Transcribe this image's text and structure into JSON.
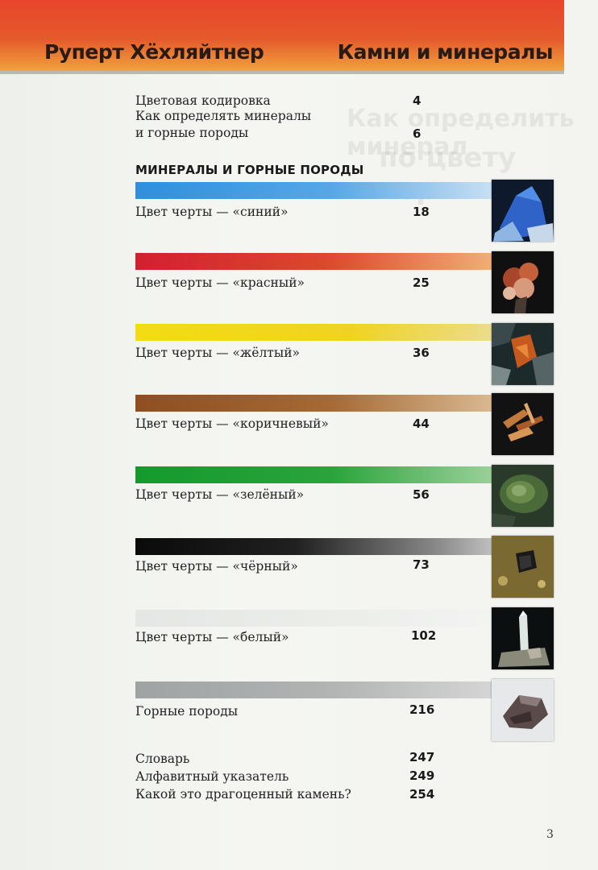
{
  "header": {
    "author": "Руперт Хёхляйтнер",
    "title": "Камни и минералы"
  },
  "intro": [
    {
      "label": "Цветовая кодировка",
      "page": "4"
    },
    {
      "label": "Как определять минералы",
      "page": ""
    },
    {
      "label": "и горные породы",
      "page": "6"
    }
  ],
  "section_heading": "МИНЕРАЛЫ И ГОРНЫЕ ПОРОДЫ",
  "streak_sections": [
    {
      "label": "Цвет черты — «синий»",
      "page": "18",
      "color": "#2f8fdc"
    },
    {
      "label": "Цвет черты — «красный»",
      "page": "25",
      "color": "#d8272f"
    },
    {
      "label": "Цвет черты — «жёлтый»",
      "page": "36",
      "color": "#f3dc14"
    },
    {
      "label": "Цвет черты — «коричневый»",
      "page": "44",
      "color": "#9a5a2a"
    },
    {
      "label": "Цвет черты — «зелёный»",
      "page": "56",
      "color": "#1a9a2e"
    },
    {
      "label": "Цвет черты — «чёрный»",
      "page": "73",
      "color": "#111111"
    },
    {
      "label": "Цвет черты — «белый»",
      "page": "102",
      "color": "#e9ece8"
    },
    {
      "label": "Горные породы",
      "page": "216",
      "color": "#a9abab"
    }
  ],
  "appendix": [
    {
      "label": "Словарь",
      "page": "247"
    },
    {
      "label": "Алфавитный указатель",
      "page": "249"
    },
    {
      "label": "Какой это драгоценный камень?",
      "page": "254"
    }
  ],
  "page_number": "3"
}
